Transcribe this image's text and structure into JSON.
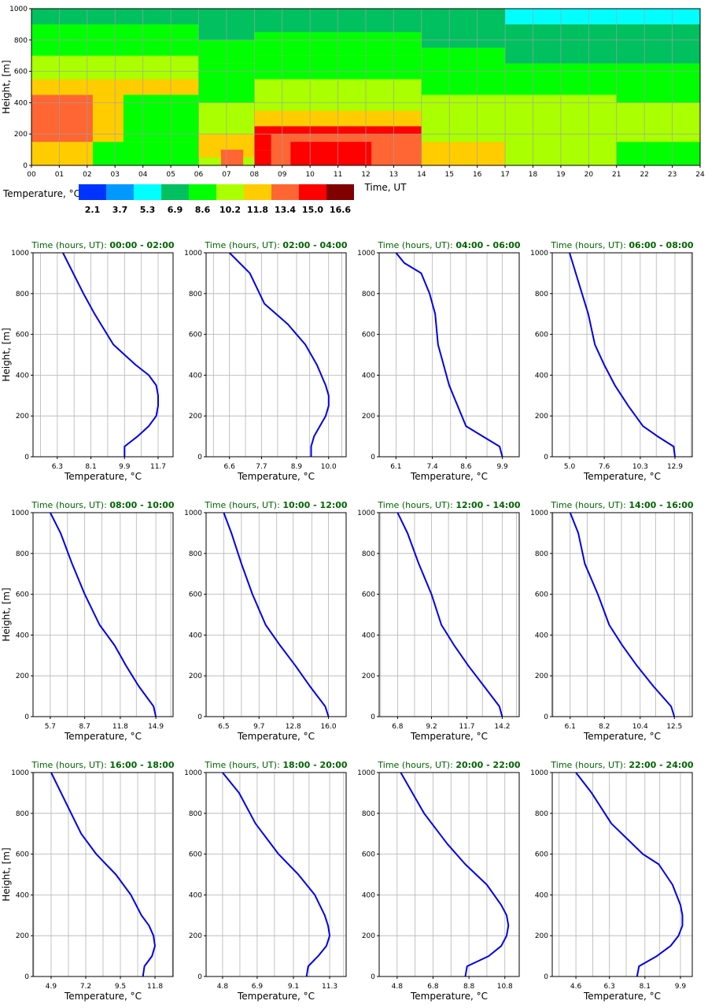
{
  "chart_data": [
    {
      "type": "heatmap",
      "xlabel": "Time, UT",
      "ylabel": "Height, [m]",
      "xlim": [
        0,
        24
      ],
      "ylim": [
        0,
        1000
      ],
      "x_tick_labels": [
        "00",
        "01",
        "02",
        "03",
        "04",
        "05",
        "06",
        "07",
        "08",
        "09",
        "10",
        "11",
        "12",
        "13",
        "14",
        "15",
        "16",
        "17",
        "18",
        "19",
        "20",
        "21",
        "22",
        "23",
        "24"
      ],
      "y_ticks": [
        0,
        200,
        400,
        600,
        800,
        1000
      ],
      "grid": true,
      "colorbar": {
        "label": "Temperature, °C",
        "colors": [
          "#0033ff",
          "#0099ff",
          "#00ffff",
          "#00c060",
          "#00ff00",
          "#aaff00",
          "#ffcc00",
          "#ff6633",
          "#ff0000",
          "#800000"
        ],
        "values": [
          "2.1",
          "3.7",
          "5.3",
          "6.9",
          "8.6",
          "10.2",
          "11.8",
          "13.4",
          "15.0",
          "16.6"
        ]
      },
      "cells": [
        {
          "t0": 0,
          "t1": 6,
          "h0": 0,
          "h1": 50,
          "c": 6
        },
        {
          "t0": 0,
          "t1": 6,
          "h0": 50,
          "h1": 150,
          "c": 6
        },
        {
          "t0": 0,
          "t1": 6,
          "h0": 150,
          "h1": 450,
          "c": 7
        },
        {
          "t0": 0,
          "t1": 6,
          "h0": 450,
          "h1": 550,
          "c": 6
        },
        {
          "t0": 0,
          "t1": 6,
          "h0": 550,
          "h1": 700,
          "c": 5
        },
        {
          "t0": 0,
          "t1": 6,
          "h0": 700,
          "h1": 900,
          "c": 4
        },
        {
          "t0": 0,
          "t1": 6,
          "h0": 900,
          "h1": 1000,
          "c": 3
        },
        {
          "t0": 2.2,
          "t1": 6,
          "h0": 0,
          "h1": 150,
          "c": 4
        },
        {
          "t0": 2.2,
          "t1": 6,
          "h0": 150,
          "h1": 450,
          "c": 4
        },
        {
          "t0": 2.2,
          "t1": 3.3,
          "h0": 150,
          "h1": 450,
          "c": 6
        },
        {
          "t0": 6,
          "t1": 8,
          "h0": 0,
          "h1": 50,
          "c": 5
        },
        {
          "t0": 6,
          "t1": 8,
          "h0": 50,
          "h1": 200,
          "c": 6
        },
        {
          "t0": 6,
          "t1": 8,
          "h0": 200,
          "h1": 400,
          "c": 5
        },
        {
          "t0": 6,
          "t1": 8,
          "h0": 400,
          "h1": 650,
          "c": 4
        },
        {
          "t0": 6,
          "t1": 8,
          "h0": 650,
          "h1": 800,
          "c": 4
        },
        {
          "t0": 6,
          "t1": 8,
          "h0": 800,
          "h1": 1000,
          "c": 3
        },
        {
          "t0": 6.8,
          "t1": 7.6,
          "h0": 0,
          "h1": 100,
          "c": 7
        },
        {
          "t0": 8,
          "t1": 14,
          "h0": 0,
          "h1": 100,
          "c": 8
        },
        {
          "t0": 8,
          "t1": 14,
          "h0": 100,
          "h1": 250,
          "c": 8
        },
        {
          "t0": 8,
          "t1": 14,
          "h0": 250,
          "h1": 350,
          "c": 6
        },
        {
          "t0": 8,
          "t1": 14,
          "h0": 350,
          "h1": 550,
          "c": 5
        },
        {
          "t0": 8,
          "t1": 14,
          "h0": 550,
          "h1": 700,
          "c": 4
        },
        {
          "t0": 8,
          "t1": 14,
          "h0": 700,
          "h1": 850,
          "c": 4
        },
        {
          "t0": 8,
          "t1": 14,
          "h0": 850,
          "h1": 1000,
          "c": 3
        },
        {
          "t0": 8.6,
          "t1": 12.9,
          "h0": 0,
          "h1": 200,
          "c": 7
        },
        {
          "t0": 9.3,
          "t1": 12.2,
          "h0": 0,
          "h1": 150,
          "c": 8
        },
        {
          "t0": 9.8,
          "t1": 11.8,
          "h0": 0,
          "h1": 100,
          "c": 8
        },
        {
          "t0": 12.9,
          "t1": 14,
          "h0": 0,
          "h1": 200,
          "c": 7
        },
        {
          "t0": 14,
          "t1": 17,
          "h0": 0,
          "h1": 150,
          "c": 6
        },
        {
          "t0": 14,
          "t1": 17,
          "h0": 150,
          "h1": 450,
          "c": 5
        },
        {
          "t0": 14,
          "t1": 17,
          "h0": 450,
          "h1": 600,
          "c": 4
        },
        {
          "t0": 14,
          "t1": 17,
          "h0": 600,
          "h1": 750,
          "c": 4
        },
        {
          "t0": 14,
          "t1": 17,
          "h0": 750,
          "h1": 1000,
          "c": 3
        },
        {
          "t0": 17,
          "t1": 21,
          "h0": 0,
          "h1": 150,
          "c": 5
        },
        {
          "t0": 17,
          "t1": 21,
          "h0": 150,
          "h1": 450,
          "c": 5
        },
        {
          "t0": 17,
          "t1": 21,
          "h0": 450,
          "h1": 650,
          "c": 4
        },
        {
          "t0": 17,
          "t1": 21,
          "h0": 650,
          "h1": 900,
          "c": 3
        },
        {
          "t0": 17,
          "t1": 21,
          "h0": 900,
          "h1": 1000,
          "c": 2
        },
        {
          "t0": 21,
          "t1": 24,
          "h0": 0,
          "h1": 150,
          "c": 4
        },
        {
          "t0": 21,
          "t1": 24,
          "h0": 150,
          "h1": 400,
          "c": 5
        },
        {
          "t0": 21,
          "t1": 24,
          "h0": 400,
          "h1": 650,
          "c": 4
        },
        {
          "t0": 21,
          "t1": 24,
          "h0": 650,
          "h1": 900,
          "c": 3
        },
        {
          "t0": 21,
          "t1": 24,
          "h0": 900,
          "h1": 1000,
          "c": 2
        }
      ]
    },
    {
      "type": "line",
      "title_prefix": "Time (hours, UT):",
      "title_range": "00:00 - 02:00",
      "xlabel": "Temperature, °C",
      "ylabel": "Height, [m]",
      "xlim": [
        5.0,
        12.5
      ],
      "ylim": [
        0,
        1000
      ],
      "x_ticks": [
        6.3,
        8.1,
        9.9,
        11.7
      ],
      "x_tick_labels": [
        "6.3",
        "8.1",
        "9.9",
        "11.7"
      ],
      "y_ticks": [
        0,
        200,
        400,
        600,
        800,
        1000
      ],
      "grid": true,
      "series": [
        {
          "color": "#0000ee",
          "x": [
            9.9,
            9.9,
            10.6,
            11.2,
            11.6,
            11.7,
            11.7,
            11.6,
            11.2,
            10.5,
            9.9,
            9.3,
            8.3,
            7.7,
            6.6
          ],
          "y": [
            0,
            50,
            100,
            150,
            200,
            250,
            300,
            350,
            400,
            450,
            500,
            550,
            700,
            800,
            1000
          ]
        }
      ]
    },
    {
      "type": "line",
      "title_prefix": "Time (hours, UT):",
      "title_range": "02:00 - 04:00",
      "xlabel": "Temperature, °C",
      "ylabel": "",
      "xlim": [
        5.8,
        10.6
      ],
      "ylim": [
        0,
        1000
      ],
      "x_ticks": [
        6.6,
        7.7,
        8.9,
        10.0
      ],
      "x_tick_labels": [
        "6.6",
        "7.7",
        "8.9",
        "10.0"
      ],
      "y_ticks": [
        0,
        200,
        400,
        600,
        800,
        1000
      ],
      "grid": true,
      "series": [
        {
          "color": "#0000ee",
          "x": [
            9.4,
            9.4,
            9.5,
            9.7,
            9.9,
            10.0,
            10.0,
            9.9,
            9.6,
            9.2,
            8.6,
            7.8,
            7.3,
            6.6
          ],
          "y": [
            0,
            50,
            100,
            150,
            200,
            250,
            300,
            350,
            450,
            550,
            650,
            750,
            900,
            1000
          ]
        }
      ]
    },
    {
      "type": "line",
      "title_prefix": "Time (hours, UT):",
      "title_range": "04:00 - 06:00",
      "xlabel": "Temperature, °C",
      "ylabel": "",
      "xlim": [
        5.5,
        10.5
      ],
      "ylim": [
        0,
        1000
      ],
      "x_ticks": [
        6.1,
        7.4,
        8.6,
        9.9
      ],
      "x_tick_labels": [
        "6.1",
        "7.4",
        "8.6",
        "9.9"
      ],
      "y_ticks": [
        0,
        200,
        400,
        600,
        800,
        1000
      ],
      "grid": true,
      "series": [
        {
          "color": "#0000ee",
          "x": [
            9.9,
            9.8,
            9.2,
            8.6,
            8.3,
            8.0,
            7.8,
            7.6,
            7.5,
            7.3,
            7.0,
            6.4,
            6.1
          ],
          "y": [
            0,
            50,
            100,
            150,
            250,
            350,
            450,
            550,
            700,
            800,
            900,
            950,
            1000
          ]
        }
      ]
    },
    {
      "type": "line",
      "title_prefix": "Time (hours, UT):",
      "title_range": "06:00 - 08:00",
      "xlabel": "Temperature, °C",
      "ylabel": "",
      "xlim": [
        3.7,
        14.2
      ],
      "ylim": [
        0,
        1000
      ],
      "x_ticks": [
        5.0,
        7.6,
        10.3,
        12.9
      ],
      "x_tick_labels": [
        "5.0",
        "7.6",
        "10.3",
        "12.9"
      ],
      "y_ticks": [
        0,
        200,
        400,
        600,
        800,
        1000
      ],
      "grid": true,
      "series": [
        {
          "color": "#0000ee",
          "x": [
            12.9,
            12.8,
            11.6,
            10.5,
            9.4,
            8.4,
            7.6,
            6.9,
            6.4,
            5.7,
            5.0
          ],
          "y": [
            0,
            50,
            100,
            150,
            250,
            350,
            450,
            550,
            700,
            850,
            1000
          ]
        }
      ]
    },
    {
      "type": "line",
      "title_prefix": "Time (hours, UT):",
      "title_range": "08:00 - 10:00",
      "xlabel": "Temperature, °C",
      "ylabel": "Height, [m]",
      "xlim": [
        4.2,
        16.4
      ],
      "ylim": [
        0,
        1000
      ],
      "x_ticks": [
        5.7,
        8.7,
        11.8,
        14.9
      ],
      "x_tick_labels": [
        "5.7",
        "8.7",
        "11.8",
        "14.9"
      ],
      "y_ticks": [
        0,
        200,
        400,
        600,
        800,
        1000
      ],
      "grid": true,
      "series": [
        {
          "color": "#0000ee",
          "x": [
            14.9,
            14.7,
            13.4,
            12.3,
            11.3,
            10.0,
            8.7,
            7.6,
            6.6,
            5.7
          ],
          "y": [
            0,
            50,
            150,
            250,
            350,
            450,
            600,
            750,
            900,
            1000
          ]
        }
      ]
    },
    {
      "type": "line",
      "title_prefix": "Time (hours, UT):",
      "title_range": "10:00 - 12:00",
      "xlabel": "Temperature, °C",
      "ylabel": "",
      "xlim": [
        4.9,
        17.6
      ],
      "ylim": [
        0,
        1000
      ],
      "x_ticks": [
        6.5,
        9.7,
        12.8,
        16.0
      ],
      "x_tick_labels": [
        "6.5",
        "9.7",
        "12.8",
        "16.0"
      ],
      "y_ticks": [
        0,
        200,
        400,
        600,
        800,
        1000
      ],
      "grid": true,
      "series": [
        {
          "color": "#0000ee",
          "x": [
            16.0,
            15.7,
            14.3,
            13.0,
            11.6,
            10.3,
            9.1,
            8.1,
            7.2,
            6.5
          ],
          "y": [
            0,
            50,
            150,
            250,
            350,
            450,
            600,
            750,
            900,
            1000
          ]
        }
      ]
    },
    {
      "type": "line",
      "title_prefix": "Time (hours, UT):",
      "title_range": "12:00 - 14:00",
      "xlabel": "Temperature, °C",
      "ylabel": "",
      "xlim": [
        5.5,
        15.4
      ],
      "ylim": [
        0,
        1000
      ],
      "x_ticks": [
        6.8,
        9.2,
        11.7,
        14.2
      ],
      "x_tick_labels": [
        "6.8",
        "9.2",
        "11.7",
        "14.2"
      ],
      "y_ticks": [
        0,
        200,
        400,
        600,
        800,
        1000
      ],
      "grid": true,
      "series": [
        {
          "color": "#0000ee",
          "x": [
            14.2,
            14.0,
            12.9,
            11.8,
            10.8,
            9.9,
            9.2,
            8.3,
            7.5,
            6.8
          ],
          "y": [
            0,
            50,
            150,
            250,
            350,
            450,
            600,
            750,
            900,
            1000
          ]
        }
      ]
    },
    {
      "type": "line",
      "title_prefix": "Time (hours, UT):",
      "title_range": "14:00 - 16:00",
      "xlabel": "Temperature, °C",
      "ylabel": "",
      "xlim": [
        5.0,
        13.6
      ],
      "ylim": [
        0,
        1000
      ],
      "x_ticks": [
        6.1,
        8.2,
        10.4,
        12.5
      ],
      "x_tick_labels": [
        "6.1",
        "8.2",
        "10.4",
        "12.5"
      ],
      "y_ticks": [
        0,
        200,
        400,
        600,
        800,
        1000
      ],
      "grid": true,
      "series": [
        {
          "color": "#0000ee",
          "x": [
            12.5,
            12.3,
            11.2,
            10.2,
            9.3,
            8.5,
            7.8,
            7.0,
            6.6,
            6.1
          ],
          "y": [
            0,
            50,
            150,
            250,
            350,
            450,
            600,
            750,
            900,
            1000
          ]
        }
      ]
    },
    {
      "type": "line",
      "title_prefix": "Time (hours, UT):",
      "title_range": "16:00 - 18:00",
      "xlabel": "Temperature, °C",
      "ylabel": "Height, [m]",
      "xlim": [
        3.7,
        13.0
      ],
      "ylim": [
        0,
        1000
      ],
      "x_ticks": [
        4.9,
        7.2,
        9.5,
        11.8
      ],
      "x_tick_labels": [
        "4.9",
        "7.2",
        "9.5",
        "11.8"
      ],
      "y_ticks": [
        0,
        200,
        400,
        600,
        800,
        1000
      ],
      "grid": true,
      "series": [
        {
          "color": "#0000ee",
          "x": [
            11.0,
            11.1,
            11.6,
            11.8,
            11.7,
            11.4,
            10.9,
            10.2,
            9.2,
            7.9,
            6.9,
            5.9,
            4.9
          ],
          "y": [
            0,
            50,
            100,
            150,
            200,
            250,
            300,
            400,
            500,
            600,
            700,
            850,
            1000
          ]
        }
      ]
    },
    {
      "type": "line",
      "title_prefix": "Time (hours, UT):",
      "title_range": "18:00 - 20:00",
      "xlabel": "Temperature, °C",
      "ylabel": "",
      "xlim": [
        3.8,
        12.3
      ],
      "ylim": [
        0,
        1000
      ],
      "x_ticks": [
        4.8,
        6.9,
        9.1,
        11.3
      ],
      "x_tick_labels": [
        "4.8",
        "6.9",
        "9.1",
        "11.3"
      ],
      "y_ticks": [
        0,
        200,
        400,
        600,
        800,
        1000
      ],
      "grid": true,
      "series": [
        {
          "color": "#0000ee",
          "x": [
            9.9,
            10.0,
            10.6,
            11.1,
            11.3,
            11.2,
            11.0,
            10.4,
            9.4,
            8.2,
            6.8,
            5.8,
            4.8
          ],
          "y": [
            0,
            50,
            100,
            150,
            200,
            250,
            300,
            400,
            500,
            600,
            750,
            900,
            1000
          ]
        }
      ]
    },
    {
      "type": "line",
      "title_prefix": "Time (hours, UT):",
      "title_range": "20:00 - 22:00",
      "xlabel": "Temperature, °C",
      "ylabel": "",
      "xlim": [
        3.8,
        11.6
      ],
      "ylim": [
        0,
        1000
      ],
      "x_ticks": [
        4.8,
        6.8,
        8.8,
        10.8
      ],
      "x_tick_labels": [
        "4.8",
        "6.8",
        "8.8",
        "10.8"
      ],
      "y_ticks": [
        0,
        200,
        400,
        600,
        800,
        1000
      ],
      "grid": true,
      "series": [
        {
          "color": "#0000ee",
          "x": [
            8.6,
            8.7,
            9.9,
            10.6,
            10.9,
            11.0,
            10.9,
            10.6,
            9.8,
            8.6,
            7.6,
            6.3,
            5.0
          ],
          "y": [
            0,
            50,
            100,
            150,
            200,
            250,
            300,
            350,
            450,
            550,
            650,
            800,
            1000
          ]
        }
      ]
    },
    {
      "type": "line",
      "title_prefix": "Time (hours, UT):",
      "title_range": "22:00 - 24:00",
      "xlabel": "Temperature, °C",
      "ylabel": "",
      "xlim": [
        3.4,
        10.5
      ],
      "ylim": [
        0,
        1000
      ],
      "x_ticks": [
        4.6,
        6.3,
        8.1,
        9.9
      ],
      "x_tick_labels": [
        "4.6",
        "6.3",
        "8.1",
        "9.9"
      ],
      "y_ticks": [
        0,
        200,
        400,
        600,
        800,
        1000
      ],
      "grid": true,
      "series": [
        {
          "color": "#0000ee",
          "x": [
            7.7,
            7.8,
            8.7,
            9.4,
            9.8,
            10.0,
            10.0,
            9.9,
            9.5,
            8.8,
            8.0,
            6.4,
            5.4,
            4.6
          ],
          "y": [
            0,
            50,
            100,
            150,
            200,
            250,
            300,
            350,
            450,
            550,
            600,
            750,
            900,
            1000
          ]
        }
      ]
    }
  ]
}
